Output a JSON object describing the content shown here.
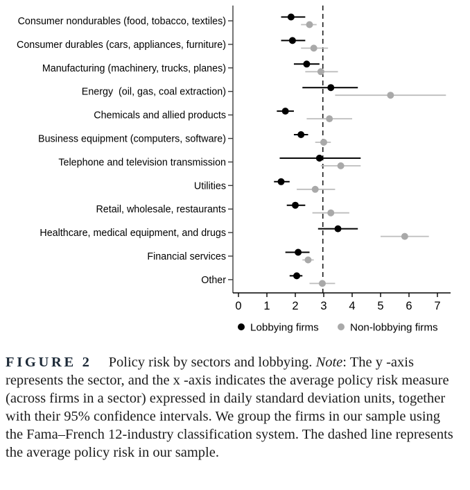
{
  "figure": {
    "label": "FIGURE 2",
    "title": "Policy risk by sectors and lobbying.",
    "note_label": "Note",
    "note_body": ": The y -axis represents the sector, and the x -axis indicates the average policy risk measure (across firms in a sector) expressed in daily standard deviation units, together with their 95% confidence intervals. We group the firms in our sample using the Fama–French 12-industry classification system. The dashed line represents the average policy risk in our sample."
  },
  "legend": {
    "lobbying_label": "Lobbying firms",
    "non_lobbying_label": "Non-lobbying firms"
  },
  "colors": {
    "lobbying_dot": "#000000",
    "lobbying_line": "#000000",
    "non_lobbying_dot": "#a9a9a9",
    "non_lobbying_line": "#bdbdbd",
    "axis": "#000000",
    "dashed_line": "#000000"
  },
  "chart_data": {
    "type": "scatter",
    "orientation": "horizontal-dot-plot-with-95ci",
    "title": "Policy risk by sectors and lobbying",
    "xlabel": "",
    "ylabel": "",
    "xlim": [
      0,
      7.5
    ],
    "xticks": [
      0,
      1,
      2,
      3,
      4,
      5,
      6,
      7
    ],
    "grid": false,
    "legend_position": "bottom",
    "dashed_line_x": 2.97,
    "dashed_line_meaning": "average policy risk in sample",
    "categories": [
      "Consumer nondurables (food, tobacco, textiles)",
      "Consumer durables (cars, appliances, furniture)",
      "Manufacturing (machinery, trucks, planes)",
      "Energy  (oil, gas, coal extraction)",
      "Chemicals and allied products",
      "Business equipment (computers, software)",
      "Telephone and television transmission",
      "Utilities",
      "Retail, wholesale, restaurants",
      "Healthcare, medical equipment, and drugs",
      "Financial services",
      "Other"
    ],
    "series": [
      {
        "name": "Lobbying firms",
        "color": "#000000",
        "line_color": "#000000",
        "values": [
          1.85,
          1.9,
          2.4,
          3.25,
          1.65,
          2.2,
          2.85,
          1.5,
          2.0,
          3.5,
          2.1,
          2.05
        ],
        "ci_low": [
          1.5,
          1.5,
          1.95,
          2.25,
          1.35,
          1.95,
          1.45,
          1.25,
          1.7,
          2.8,
          1.65,
          1.8
        ],
        "ci_high": [
          2.35,
          2.35,
          2.85,
          4.2,
          1.95,
          2.45,
          4.3,
          1.8,
          2.35,
          4.2,
          2.5,
          2.25
        ]
      },
      {
        "name": "Non-lobbying firms",
        "color": "#a9a9a9",
        "line_color": "#bdbdbd",
        "values": [
          2.5,
          2.65,
          2.9,
          5.35,
          3.2,
          3.0,
          3.6,
          2.7,
          3.25,
          5.85,
          2.45,
          2.95
        ],
        "ci_low": [
          2.2,
          2.2,
          2.35,
          3.4,
          2.4,
          2.7,
          2.9,
          2.05,
          2.6,
          5.0,
          2.25,
          2.5
        ],
        "ci_high": [
          2.75,
          3.15,
          3.5,
          7.3,
          4.0,
          3.25,
          4.3,
          3.4,
          3.9,
          6.7,
          2.65,
          3.4
        ]
      }
    ]
  }
}
